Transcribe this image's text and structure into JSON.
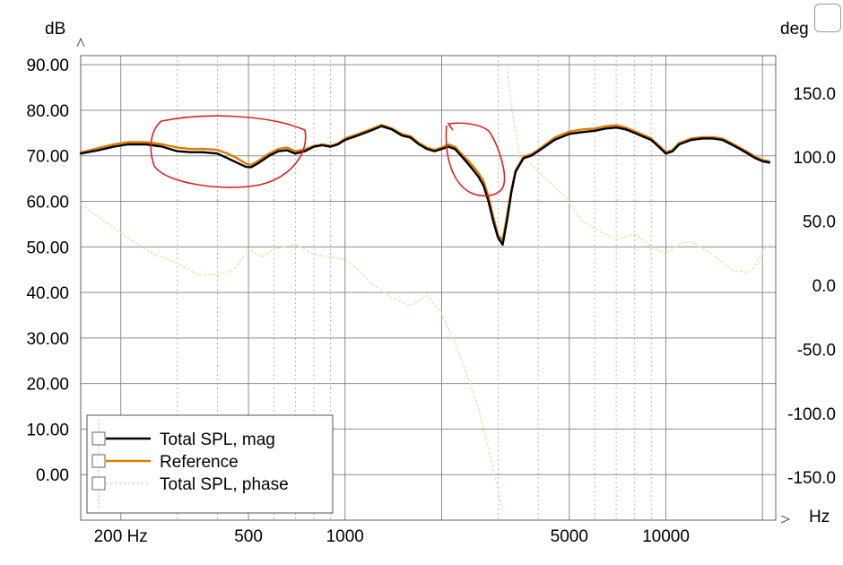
{
  "chart_data": {
    "type": "line",
    "y_unit": "dB",
    "y2_unit": "deg",
    "x_unit": "Hz",
    "x_scale": "log",
    "xlim": [
      150,
      22000
    ],
    "ylim": [
      -10,
      92
    ],
    "y2lim": [
      -180,
      180
    ],
    "grid": true,
    "legend_position": "bottom-left",
    "y_ticks": [
      "90.00",
      "80.00",
      "70.00",
      "60.00",
      "50.00",
      "40.00",
      "30.00",
      "20.00",
      "10.00",
      "0.00"
    ],
    "y2_ticks": [
      "150.0",
      "100.0",
      "50.0",
      "0.0",
      "-50.0",
      "-100.0",
      "-150.0"
    ],
    "x_ticks": [
      {
        "value": 200,
        "label": "200 Hz"
      },
      {
        "value": 500,
        "label": "500"
      },
      {
        "value": 1000,
        "label": "1000"
      },
      {
        "value": 5000,
        "label": "5000"
      },
      {
        "value": 10000,
        "label": "10000"
      }
    ],
    "series": [
      {
        "name": "Total SPL, mag",
        "axis": "left",
        "color": "#000000",
        "style": "solid",
        "x": [
          150,
          170,
          190,
          210,
          240,
          270,
          300,
          330,
          360,
          400,
          430,
          460,
          490,
          510,
          540,
          580,
          620,
          660,
          700,
          750,
          800,
          850,
          900,
          950,
          1000,
          1100,
          1200,
          1300,
          1400,
          1500,
          1600,
          1700,
          1800,
          1900,
          2000,
          2100,
          2200,
          2300,
          2400,
          2500,
          2600,
          2700,
          2800,
          2900,
          3000,
          3100,
          3200,
          3300,
          3400,
          3600,
          3800,
          4000,
          4500,
          5000,
          5500,
          6000,
          6500,
          7000,
          7500,
          8000,
          8500,
          9000,
          9500,
          10000,
          10500,
          11000,
          12000,
          13000,
          14000,
          15000,
          16000,
          17000,
          18000,
          19000,
          20000,
          21000
        ],
        "y": [
          70.5,
          71.2,
          72.0,
          72.5,
          72.5,
          72.0,
          71.0,
          70.8,
          70.8,
          70.5,
          69.5,
          68.5,
          67.6,
          67.5,
          68.5,
          70.0,
          71.0,
          71.2,
          70.5,
          71.0,
          72.0,
          72.3,
          72.0,
          72.5,
          73.5,
          74.5,
          75.5,
          76.5,
          75.8,
          74.5,
          74.0,
          72.5,
          71.5,
          71.0,
          71.5,
          72.0,
          71.5,
          70.0,
          68.5,
          67.0,
          65.5,
          63.5,
          60.0,
          55.5,
          52.0,
          50.5,
          56.0,
          62.0,
          66.5,
          69.5,
          70.0,
          71.0,
          73.5,
          74.8,
          75.2,
          75.5,
          76.0,
          76.2,
          75.8,
          75.0,
          74.2,
          73.5,
          72.0,
          70.5,
          71.0,
          72.5,
          73.5,
          73.8,
          73.8,
          73.5,
          72.5,
          71.5,
          70.5,
          69.5,
          68.8,
          68.5
        ]
      },
      {
        "name": "Reference",
        "axis": "left",
        "color": "#e07b00",
        "style": "solid",
        "x": [
          150,
          170,
          190,
          210,
          240,
          270,
          300,
          330,
          360,
          400,
          430,
          460,
          490,
          510,
          540,
          580,
          620,
          660,
          700,
          750,
          800,
          850,
          900,
          950,
          1000,
          1100,
          1200,
          1300,
          1400,
          1500,
          1600,
          1700,
          1800,
          1900,
          2000,
          2100,
          2200,
          2300,
          2400,
          2500,
          2600,
          2700,
          2800,
          2900,
          3000,
          3100,
          3200,
          3300,
          3400,
          3600,
          3800,
          4000,
          4500,
          5000,
          5500,
          6000,
          6500,
          7000,
          7500,
          8000,
          8500,
          9000,
          9500,
          10000,
          10500,
          11000,
          12000,
          13000,
          14000,
          15000,
          16000,
          17000,
          18000,
          19000,
          20000,
          21000
        ],
        "y": [
          70.7,
          71.7,
          72.5,
          73.0,
          73.0,
          72.5,
          71.8,
          71.5,
          71.5,
          71.3,
          70.5,
          69.5,
          68.3,
          68.0,
          69.0,
          70.5,
          71.5,
          71.8,
          71.0,
          71.4,
          72.2,
          72.5,
          72.2,
          72.7,
          73.8,
          74.8,
          75.8,
          76.8,
          76.0,
          74.8,
          74.3,
          72.8,
          71.8,
          71.3,
          71.8,
          72.5,
          72.0,
          70.5,
          69.2,
          67.8,
          66.3,
          64.5,
          61.0,
          56.5,
          52.5,
          51.5,
          57.0,
          62.5,
          66.8,
          69.8,
          70.3,
          71.3,
          74.0,
          75.3,
          75.8,
          76.0,
          76.5,
          76.7,
          76.2,
          75.4,
          74.6,
          73.8,
          72.3,
          70.8,
          71.3,
          72.8,
          73.8,
          74.1,
          74.1,
          73.8,
          72.8,
          71.8,
          70.8,
          69.8,
          69.1,
          68.8
        ]
      },
      {
        "name": "Total SPL, phase",
        "axis": "right",
        "color": "#e8e4a8",
        "style": "dotted",
        "x": [
          150,
          180,
          210,
          250,
          300,
          350,
          400,
          450,
          500,
          550,
          600,
          700,
          800,
          900,
          1000,
          1100,
          1200,
          1400,
          1600,
          1800,
          2000,
          2200,
          2400,
          2600,
          2800,
          3000,
          3100,
          3200,
          3300,
          3500,
          3800,
          4200,
          4800,
          5500,
          6000,
          7000,
          8000,
          9000,
          10000,
          11000,
          12000,
          14000,
          16000,
          18000,
          19000,
          20000,
          21000
        ],
        "y": [
          63,
          49,
          37,
          25,
          17,
          8,
          8,
          12,
          28,
          22,
          28,
          32,
          24,
          22,
          20,
          12,
          2,
          -10,
          -16,
          -8,
          -22,
          -45,
          -70,
          -95,
          -128,
          -160,
          -175,
          170,
          140,
          100,
          94,
          84,
          70,
          50,
          44,
          36,
          40,
          30,
          24,
          32,
          34,
          24,
          12,
          10,
          15,
          26,
          32
        ]
      }
    ]
  }
}
